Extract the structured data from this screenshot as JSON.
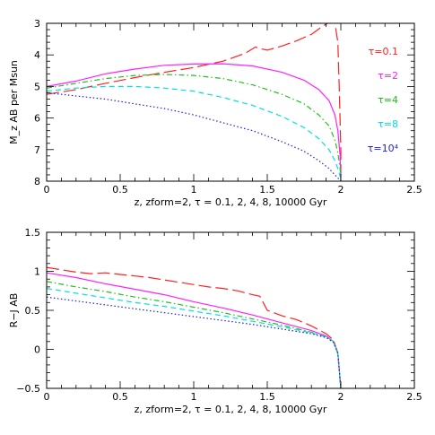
{
  "chart_data": [
    {
      "type": "line",
      "xlabel": "z, zform=2, τ = 0.1, 2, 4, 8, 10000 Gyr",
      "ylabel": "M_z AB per Msun",
      "xlim": [
        0,
        2.5
      ],
      "ylim": [
        8,
        3
      ],
      "y_inverted": true,
      "xticks": [
        0,
        0.5,
        1,
        1.5,
        2,
        2.5
      ],
      "xtick_labels": [
        "0",
        "0.5",
        "1",
        "1.5",
        "2",
        "2.5"
      ],
      "yticks": [
        3,
        4,
        5,
        6,
        7,
        8
      ],
      "ytick_labels": [
        "3",
        "4",
        "5",
        "6",
        "7",
        "8"
      ],
      "legend_placement": "right",
      "series": [
        {
          "name": "τ=0.1",
          "color": "#ff2020",
          "dash": "long",
          "x": [
            0,
            0.2,
            0.4,
            0.6,
            0.8,
            1.0,
            1.2,
            1.35,
            1.42,
            1.45,
            1.5,
            1.6,
            1.7,
            1.8,
            1.88,
            1.93,
            1.96,
            1.98,
            1.99,
            2.0,
            2.0
          ],
          "y": [
            5.25,
            5.1,
            4.9,
            4.72,
            4.55,
            4.4,
            4.2,
            3.95,
            3.75,
            3.8,
            3.85,
            3.72,
            3.55,
            3.35,
            3.08,
            2.95,
            3.0,
            3.6,
            5.2,
            7.0,
            8.0
          ]
        },
        {
          "name": "τ=2",
          "color": "#ff20ff",
          "dash": "solid",
          "x": [
            0,
            0.2,
            0.4,
            0.6,
            0.8,
            1.0,
            1.2,
            1.4,
            1.6,
            1.75,
            1.85,
            1.92,
            1.96,
            1.98,
            1.995,
            2.0
          ],
          "y": [
            5.0,
            4.83,
            4.6,
            4.45,
            4.33,
            4.29,
            4.28,
            4.35,
            4.55,
            4.8,
            5.1,
            5.45,
            5.9,
            6.4,
            7.2,
            8.0
          ]
        },
        {
          "name": "τ=4",
          "color": "#20c020",
          "dash": "dashdot",
          "x": [
            0,
            0.2,
            0.4,
            0.6,
            0.8,
            1.0,
            1.2,
            1.4,
            1.6,
            1.75,
            1.85,
            1.92,
            1.96,
            1.98,
            1.995,
            2.0
          ],
          "y": [
            5.05,
            4.9,
            4.75,
            4.65,
            4.62,
            4.65,
            4.75,
            4.95,
            5.25,
            5.55,
            5.9,
            6.25,
            6.7,
            7.1,
            7.6,
            8.0
          ]
        },
        {
          "name": "τ=8",
          "color": "#00e0e0",
          "dash": "dash",
          "x": [
            0,
            0.2,
            0.4,
            0.6,
            0.8,
            1.0,
            1.2,
            1.4,
            1.6,
            1.75,
            1.85,
            1.92,
            1.96,
            1.98,
            1.995,
            2.0
          ],
          "y": [
            5.15,
            5.05,
            5.0,
            5.0,
            5.05,
            5.15,
            5.35,
            5.6,
            5.95,
            6.3,
            6.65,
            7.0,
            7.35,
            7.6,
            7.85,
            8.0
          ]
        },
        {
          "name": "τ=10⁴",
          "color": "#2020e0",
          "dash": "dot",
          "x": [
            0,
            0.2,
            0.4,
            0.6,
            0.8,
            1.0,
            1.2,
            1.4,
            1.6,
            1.75,
            1.85,
            1.92,
            1.96,
            1.98,
            1.995,
            2.0
          ],
          "y": [
            5.2,
            5.3,
            5.4,
            5.55,
            5.7,
            5.9,
            6.15,
            6.4,
            6.75,
            7.05,
            7.35,
            7.6,
            7.8,
            7.9,
            7.97,
            8.0
          ]
        }
      ]
    },
    {
      "type": "line",
      "xlabel": "z, zform=2, τ = 0.1, 2, 4, 8, 10000 Gyr",
      "ylabel": "R−J AB",
      "xlim": [
        0,
        2.5
      ],
      "ylim": [
        -0.5,
        1.5
      ],
      "xticks": [
        0,
        0.5,
        1,
        1.5,
        2,
        2.5
      ],
      "xtick_labels": [
        "0",
        "0.5",
        "1",
        "1.5",
        "2",
        "2.5"
      ],
      "yticks": [
        -0.5,
        0,
        0.5,
        1,
        1.5
      ],
      "ytick_labels": [
        "−0.5",
        "0",
        "0.5",
        "1",
        "1.5"
      ],
      "series": [
        {
          "name": "τ=0.1",
          "color": "#ff2020",
          "dash": "long",
          "x": [
            0,
            0.1,
            0.2,
            0.3,
            0.4,
            0.5,
            0.6,
            0.7,
            0.8,
            0.9,
            1.0,
            1.1,
            1.2,
            1.3,
            1.4,
            1.45,
            1.5,
            1.6,
            1.7,
            1.8,
            1.9,
            1.95,
            1.98,
            2.0
          ],
          "y": [
            1.05,
            1.02,
            0.99,
            0.97,
            0.98,
            0.96,
            0.94,
            0.92,
            0.89,
            0.86,
            0.83,
            0.8,
            0.78,
            0.75,
            0.7,
            0.68,
            0.5,
            0.43,
            0.38,
            0.3,
            0.2,
            0.12,
            -0.05,
            -0.5
          ]
        },
        {
          "name": "τ=2",
          "color": "#ff20ff",
          "dash": "solid",
          "x": [
            0,
            0.2,
            0.4,
            0.6,
            0.8,
            1.0,
            1.2,
            1.4,
            1.6,
            1.8,
            1.9,
            1.95,
            1.98,
            2.0
          ],
          "y": [
            0.98,
            0.92,
            0.84,
            0.77,
            0.7,
            0.61,
            0.53,
            0.44,
            0.34,
            0.24,
            0.17,
            0.1,
            -0.05,
            -0.5
          ]
        },
        {
          "name": "τ=4",
          "color": "#20c020",
          "dash": "dashdot",
          "x": [
            0,
            0.2,
            0.4,
            0.6,
            0.8,
            1.0,
            1.2,
            1.4,
            1.6,
            1.8,
            1.9,
            1.95,
            1.98,
            2.0
          ],
          "y": [
            0.87,
            0.8,
            0.74,
            0.67,
            0.61,
            0.54,
            0.47,
            0.39,
            0.31,
            0.22,
            0.16,
            0.1,
            -0.05,
            -0.5
          ]
        },
        {
          "name": "τ=8",
          "color": "#00e0e0",
          "dash": "dash",
          "x": [
            0,
            0.2,
            0.4,
            0.6,
            0.8,
            1.0,
            1.2,
            1.4,
            1.6,
            1.8,
            1.9,
            1.95,
            1.98,
            2.0
          ],
          "y": [
            0.78,
            0.72,
            0.66,
            0.6,
            0.55,
            0.49,
            0.43,
            0.36,
            0.29,
            0.21,
            0.16,
            0.1,
            -0.05,
            -0.5
          ]
        },
        {
          "name": "τ=10⁴",
          "color": "#2020e0",
          "dash": "dot",
          "x": [
            0,
            0.2,
            0.4,
            0.6,
            0.8,
            1.0,
            1.2,
            1.4,
            1.6,
            1.8,
            1.9,
            1.95,
            1.98,
            2.0
          ],
          "y": [
            0.67,
            0.62,
            0.57,
            0.52,
            0.47,
            0.42,
            0.37,
            0.32,
            0.26,
            0.2,
            0.15,
            0.09,
            -0.05,
            -0.5
          ]
        }
      ]
    }
  ]
}
